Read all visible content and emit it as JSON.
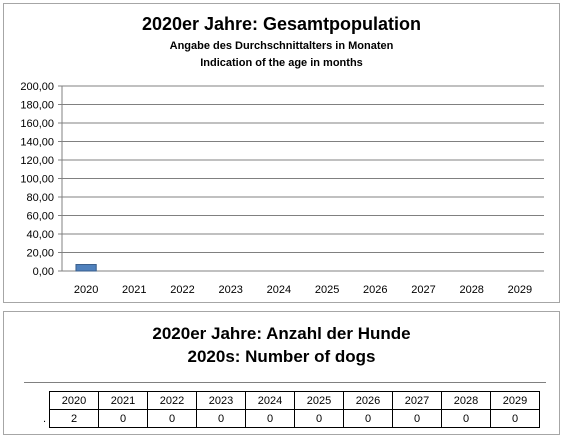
{
  "chart": {
    "title": "2020er Jahre: Gesamtpopulation",
    "subtitle_1": "Angabe des Durchschnittalters in Monaten",
    "subtitle_2": "Indication of the age in months"
  },
  "chart_data": {
    "type": "bar",
    "categories": [
      "2020",
      "2021",
      "2022",
      "2023",
      "2024",
      "2025",
      "2026",
      "2027",
      "2028",
      "2029"
    ],
    "values": [
      7,
      0,
      0,
      0,
      0,
      0,
      0,
      0,
      0,
      0
    ],
    "yticks": [
      "0,00",
      "20,00",
      "40,00",
      "60,00",
      "80,00",
      "100,00",
      "120,00",
      "140,00",
      "160,00",
      "180,00",
      "200,00"
    ],
    "ylim": [
      0,
      200
    ],
    "grid": true,
    "bar_color": "#4f81bd"
  },
  "table": {
    "title_1": "2020er Jahre: Anzahl der Hunde",
    "title_2": "2020s: Number of dogs",
    "row_label": ".",
    "years": [
      "2020",
      "2021",
      "2022",
      "2023",
      "2024",
      "2025",
      "2026",
      "2027",
      "2028",
      "2029"
    ],
    "counts": [
      "2",
      "0",
      "0",
      "0",
      "0",
      "0",
      "0",
      "0",
      "0",
      "0"
    ]
  }
}
